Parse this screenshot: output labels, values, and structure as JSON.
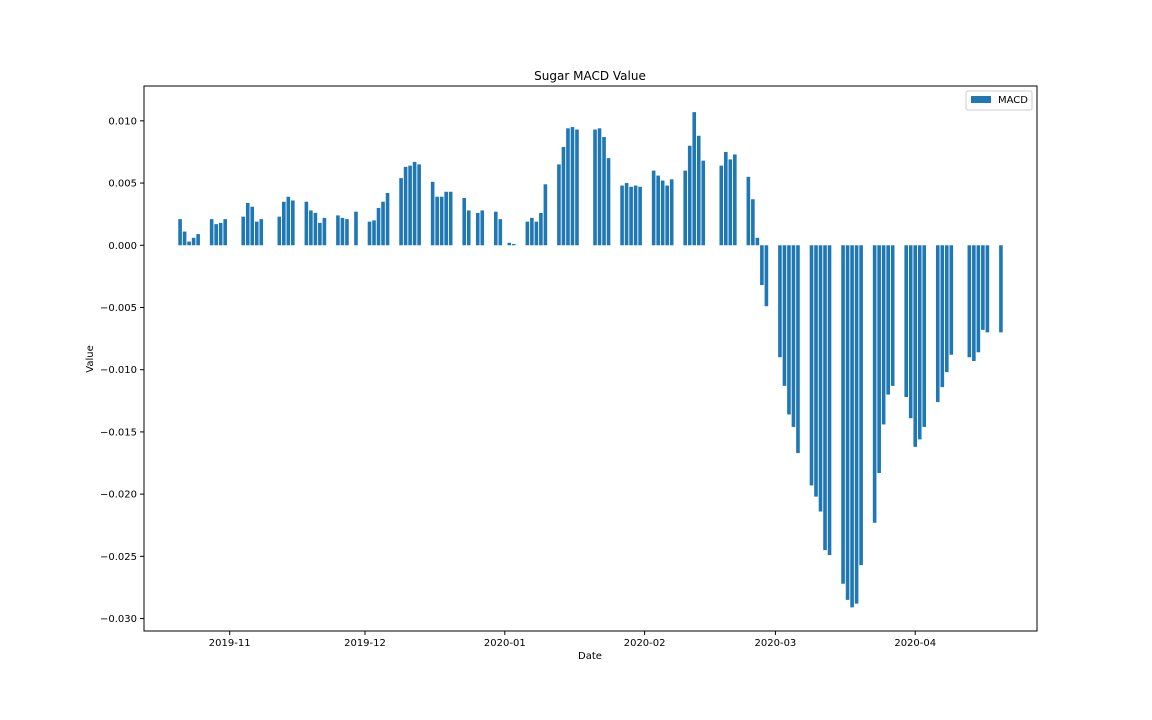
{
  "chart_data": {
    "type": "bar",
    "title": "Sugar MACD Value",
    "xlabel": "Date",
    "ylabel": "Value",
    "ylim": [
      -0.031,
      0.0128
    ],
    "xlim": [
      "2019-10-13",
      "2020-04-28"
    ],
    "grid": false,
    "legend": {
      "placement": "top-right",
      "entries": [
        "MACD"
      ]
    },
    "x_ticks": [
      {
        "date": "2019-11-01",
        "label": "2019-11"
      },
      {
        "date": "2019-12-01",
        "label": "2019-12"
      },
      {
        "date": "2020-01-01",
        "label": "2020-01"
      },
      {
        "date": "2020-02-01",
        "label": "2020-02"
      },
      {
        "date": "2020-03-01",
        "label": "2020-03"
      },
      {
        "date": "2020-04-01",
        "label": "2020-04"
      }
    ],
    "y_ticks": [
      {
        "value": 0.01,
        "label": "0.010"
      },
      {
        "value": 0.005,
        "label": "0.005"
      },
      {
        "value": 0.0,
        "label": "0.000"
      },
      {
        "value": -0.005,
        "label": "−0.005"
      },
      {
        "value": -0.01,
        "label": "−0.010"
      },
      {
        "value": -0.015,
        "label": "−0.015"
      },
      {
        "value": -0.02,
        "label": "−0.020"
      },
      {
        "value": -0.025,
        "label": "−0.025"
      },
      {
        "value": -0.03,
        "label": "−0.030"
      }
    ],
    "colors": {
      "bar": "#1f77b4"
    },
    "series": [
      {
        "name": "MACD",
        "x": [
          "2019-10-21",
          "2019-10-22",
          "2019-10-23",
          "2019-10-24",
          "2019-10-25",
          "2019-10-28",
          "2019-10-29",
          "2019-10-30",
          "2019-10-31",
          "2019-11-04",
          "2019-11-05",
          "2019-11-06",
          "2019-11-07",
          "2019-11-08",
          "2019-11-12",
          "2019-11-13",
          "2019-11-14",
          "2019-11-15",
          "2019-11-18",
          "2019-11-19",
          "2019-11-20",
          "2019-11-21",
          "2019-11-22",
          "2019-11-25",
          "2019-11-26",
          "2019-11-27",
          "2019-11-29",
          "2019-12-02",
          "2019-12-03",
          "2019-12-04",
          "2019-12-05",
          "2019-12-06",
          "2019-12-09",
          "2019-12-10",
          "2019-12-11",
          "2019-12-12",
          "2019-12-13",
          "2019-12-16",
          "2019-12-17",
          "2019-12-18",
          "2019-12-19",
          "2019-12-20",
          "2019-12-23",
          "2019-12-24",
          "2019-12-26",
          "2019-12-27",
          "2019-12-30",
          "2019-12-31",
          "2020-01-02",
          "2020-01-03",
          "2020-01-06",
          "2020-01-07",
          "2020-01-08",
          "2020-01-09",
          "2020-01-10",
          "2020-01-13",
          "2020-01-14",
          "2020-01-15",
          "2020-01-16",
          "2020-01-17",
          "2020-01-21",
          "2020-01-22",
          "2020-01-23",
          "2020-01-24",
          "2020-01-27",
          "2020-01-28",
          "2020-01-29",
          "2020-01-30",
          "2020-01-31",
          "2020-02-03",
          "2020-02-04",
          "2020-02-05",
          "2020-02-06",
          "2020-02-07",
          "2020-02-10",
          "2020-02-11",
          "2020-02-12",
          "2020-02-13",
          "2020-02-14",
          "2020-02-18",
          "2020-02-19",
          "2020-02-20",
          "2020-02-21",
          "2020-02-24",
          "2020-02-25",
          "2020-02-26",
          "2020-02-27",
          "2020-02-28",
          "2020-03-02",
          "2020-03-03",
          "2020-03-04",
          "2020-03-05",
          "2020-03-06",
          "2020-03-09",
          "2020-03-10",
          "2020-03-11",
          "2020-03-12",
          "2020-03-13",
          "2020-03-16",
          "2020-03-17",
          "2020-03-18",
          "2020-03-19",
          "2020-03-20",
          "2020-03-23",
          "2020-03-24",
          "2020-03-25",
          "2020-03-26",
          "2020-03-27",
          "2020-03-30",
          "2020-03-31",
          "2020-04-01",
          "2020-04-02",
          "2020-04-03",
          "2020-04-06",
          "2020-04-07",
          "2020-04-08",
          "2020-04-09",
          "2020-04-13",
          "2020-04-14",
          "2020-04-15",
          "2020-04-16",
          "2020-04-17",
          "2020-04-20"
        ],
        "values": [
          0.0021,
          0.0011,
          0.0003,
          0.0006,
          0.0009,
          0.0021,
          0.0017,
          0.0018,
          0.0021,
          0.0023,
          0.0034,
          0.0031,
          0.0019,
          0.0021,
          0.0023,
          0.0035,
          0.0039,
          0.0036,
          0.0035,
          0.0028,
          0.0026,
          0.0018,
          0.0022,
          0.0024,
          0.0022,
          0.0021,
          0.0027,
          0.0019,
          0.002,
          0.003,
          0.0035,
          0.0042,
          0.0054,
          0.0063,
          0.0064,
          0.0067,
          0.0065,
          0.0051,
          0.0039,
          0.0039,
          0.0043,
          0.0043,
          0.0038,
          0.0028,
          0.0026,
          0.0028,
          0.0027,
          0.0021,
          0.0002,
          0.0001,
          0.0019,
          0.0022,
          0.0019,
          0.0026,
          0.0049,
          0.0065,
          0.0079,
          0.0094,
          0.0095,
          0.0093,
          0.0093,
          0.0094,
          0.0087,
          0.007,
          0.0048,
          0.005,
          0.0047,
          0.0048,
          0.0047,
          0.006,
          0.0056,
          0.0052,
          0.0048,
          0.0053,
          0.006,
          0.008,
          0.0107,
          0.0088,
          0.0068,
          0.0064,
          0.0075,
          0.0069,
          0.0073,
          0.0055,
          0.0037,
          0.0006,
          -0.0032,
          -0.0049,
          -0.009,
          -0.0113,
          -0.0136,
          -0.0146,
          -0.0167,
          -0.0193,
          -0.0202,
          -0.0214,
          -0.0245,
          -0.0249,
          -0.0272,
          -0.0285,
          -0.0291,
          -0.0288,
          -0.0257,
          -0.0223,
          -0.0183,
          -0.0144,
          -0.012,
          -0.0113,
          -0.0122,
          -0.0139,
          -0.0162,
          -0.0156,
          -0.0146,
          -0.0126,
          -0.0114,
          -0.0102,
          -0.0088,
          -0.009,
          -0.0093,
          -0.0086,
          -0.0068,
          -0.007,
          -0.007
        ]
      }
    ]
  }
}
